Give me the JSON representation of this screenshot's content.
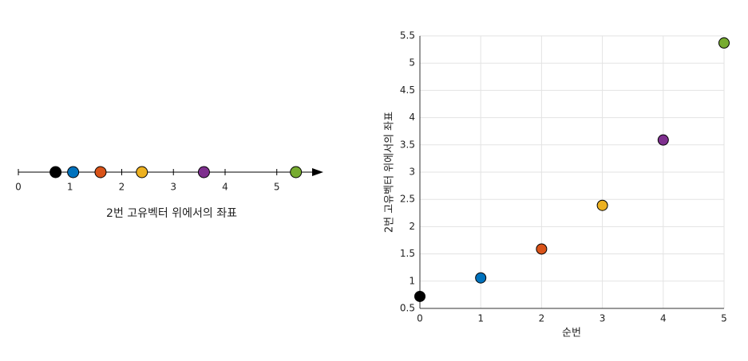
{
  "chart_data": [
    {
      "type": "numberline",
      "xlabel": "2번 고유벡터 위에서의 좌표",
      "values": [
        0.72,
        1.06,
        1.59,
        2.39,
        3.59,
        5.37
      ],
      "colors": [
        "#000000",
        "#0072bd",
        "#d95319",
        "#edb120",
        "#7e2f8e",
        "#77ac30"
      ],
      "xlim": [
        0,
        5.9
      ],
      "xticks": [
        0,
        1,
        2,
        3,
        4,
        5
      ]
    },
    {
      "type": "scatter",
      "xlabel": "순번",
      "ylabel": "2번 고유벡터 위에서의 좌표",
      "x": [
        0,
        1,
        2,
        3,
        4,
        5
      ],
      "y": [
        0.72,
        1.06,
        1.59,
        2.39,
        3.59,
        5.37
      ],
      "colors": [
        "#000000",
        "#0072bd",
        "#d95319",
        "#edb120",
        "#7e2f8e",
        "#77ac30"
      ],
      "xlim": [
        0,
        5
      ],
      "xticks": [
        0,
        1,
        2,
        3,
        4,
        5
      ],
      "ylim": [
        0.5,
        5.5
      ],
      "yticks": [
        0.5,
        1,
        1.5,
        2,
        2.5,
        3,
        3.5,
        4,
        4.5,
        5,
        5.5
      ],
      "grid": true
    }
  ]
}
